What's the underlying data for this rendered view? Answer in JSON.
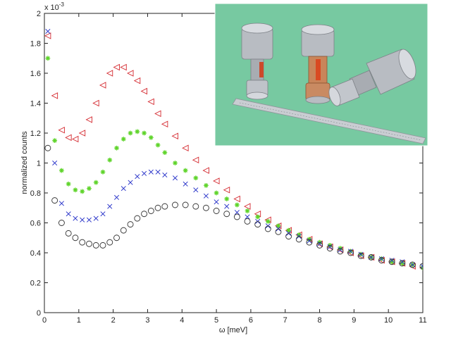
{
  "chart_data": {
    "type": "scatter",
    "title": "",
    "xlabel": "ω [meV]",
    "ylabel": "normalized counts",
    "y_exponent_label": "x 10",
    "y_exponent_power": "-3",
    "xlim": [
      0,
      11
    ],
    "ylim": [
      0,
      2.0
    ],
    "x_ticks": [
      "0",
      "1",
      "2",
      "3",
      "4",
      "5",
      "6",
      "7",
      "8",
      "9",
      "10",
      "11"
    ],
    "y_ticks": [
      "0",
      "0.2",
      "0.4",
      "0.6",
      "0.8",
      "1",
      "1.2",
      "1.4",
      "1.6",
      "1.8",
      "2"
    ],
    "grid": false,
    "series": [
      {
        "marker": "triangle-left",
        "color": "#d4282e",
        "x": [
          0.1,
          0.3,
          0.5,
          0.7,
          0.9,
          1.1,
          1.3,
          1.5,
          1.7,
          1.9,
          2.1,
          2.3,
          2.5,
          2.7,
          2.9,
          3.1,
          3.3,
          3.5,
          3.8,
          4.1,
          4.4,
          4.7,
          5.0,
          5.3,
          5.6,
          5.9,
          6.2,
          6.5,
          6.8,
          7.1,
          7.4,
          7.7,
          8.0,
          8.3,
          8.6,
          8.9,
          9.2,
          9.5,
          9.8,
          10.1,
          10.4,
          10.7,
          11.0
        ],
        "y": [
          1.85,
          1.45,
          1.22,
          1.17,
          1.16,
          1.2,
          1.29,
          1.4,
          1.52,
          1.6,
          1.64,
          1.64,
          1.6,
          1.55,
          1.48,
          1.41,
          1.33,
          1.26,
          1.18,
          1.1,
          1.02,
          0.95,
          0.88,
          0.82,
          0.76,
          0.71,
          0.66,
          0.62,
          0.58,
          0.55,
          0.52,
          0.49,
          0.46,
          0.44,
          0.42,
          0.4,
          0.38,
          0.37,
          0.35,
          0.34,
          0.33,
          0.31,
          0.3
        ]
      },
      {
        "marker": "star",
        "color": "#5fd42b",
        "x": [
          0.1,
          0.3,
          0.5,
          0.7,
          0.9,
          1.1,
          1.3,
          1.5,
          1.7,
          1.9,
          2.1,
          2.3,
          2.5,
          2.7,
          2.9,
          3.1,
          3.3,
          3.5,
          3.8,
          4.1,
          4.4,
          4.7,
          5.0,
          5.3,
          5.6,
          5.9,
          6.2,
          6.5,
          6.8,
          7.1,
          7.4,
          7.7,
          8.0,
          8.3,
          8.6,
          8.9,
          9.2,
          9.5,
          9.8,
          10.1,
          10.4,
          10.7,
          11.0
        ],
        "y": [
          1.7,
          1.15,
          0.95,
          0.86,
          0.82,
          0.81,
          0.83,
          0.87,
          0.94,
          1.02,
          1.1,
          1.16,
          1.2,
          1.21,
          1.2,
          1.17,
          1.12,
          1.07,
          1.0,
          0.95,
          0.9,
          0.85,
          0.8,
          0.76,
          0.72,
          0.68,
          0.64,
          0.61,
          0.58,
          0.55,
          0.52,
          0.49,
          0.47,
          0.45,
          0.43,
          0.41,
          0.39,
          0.37,
          0.36,
          0.34,
          0.33,
          0.32,
          0.3
        ]
      },
      {
        "marker": "x",
        "color": "#2833c9",
        "x": [
          0.1,
          0.3,
          0.5,
          0.7,
          0.9,
          1.1,
          1.3,
          1.5,
          1.7,
          1.9,
          2.1,
          2.3,
          2.5,
          2.7,
          2.9,
          3.1,
          3.3,
          3.5,
          3.8,
          4.1,
          4.4,
          4.7,
          5.0,
          5.3,
          5.6,
          5.9,
          6.2,
          6.5,
          6.8,
          7.1,
          7.4,
          7.7,
          8.0,
          8.3,
          8.6,
          8.9,
          9.2,
          9.5,
          9.8,
          10.1,
          10.4,
          10.7,
          11.0
        ],
        "y": [
          1.88,
          1.0,
          0.73,
          0.66,
          0.63,
          0.62,
          0.62,
          0.63,
          0.66,
          0.71,
          0.77,
          0.83,
          0.87,
          0.91,
          0.93,
          0.94,
          0.94,
          0.92,
          0.9,
          0.86,
          0.82,
          0.78,
          0.74,
          0.71,
          0.67,
          0.64,
          0.61,
          0.58,
          0.56,
          0.53,
          0.51,
          0.48,
          0.46,
          0.44,
          0.42,
          0.41,
          0.39,
          0.37,
          0.36,
          0.35,
          0.34,
          0.32,
          0.31
        ]
      },
      {
        "marker": "circle",
        "color": "#333333",
        "x": [
          0.1,
          0.3,
          0.5,
          0.7,
          0.9,
          1.1,
          1.3,
          1.5,
          1.7,
          1.9,
          2.1,
          2.3,
          2.5,
          2.7,
          2.9,
          3.1,
          3.3,
          3.5,
          3.8,
          4.1,
          4.4,
          4.7,
          5.0,
          5.3,
          5.6,
          5.9,
          6.2,
          6.5,
          6.8,
          7.1,
          7.4,
          7.7,
          8.0,
          8.3,
          8.6,
          8.9,
          9.2,
          9.5,
          9.8,
          10.1,
          10.4,
          10.7,
          11.0
        ],
        "y": [
          1.1,
          0.75,
          0.6,
          0.53,
          0.5,
          0.47,
          0.46,
          0.45,
          0.45,
          0.47,
          0.5,
          0.55,
          0.59,
          0.63,
          0.66,
          0.68,
          0.7,
          0.71,
          0.72,
          0.72,
          0.71,
          0.7,
          0.68,
          0.66,
          0.64,
          0.61,
          0.59,
          0.56,
          0.54,
          0.51,
          0.49,
          0.47,
          0.45,
          0.43,
          0.41,
          0.4,
          0.38,
          0.37,
          0.35,
          0.34,
          0.33,
          0.32,
          0.31
        ]
      }
    ]
  },
  "inset": {
    "description_colors": {
      "background": "#77c9a1",
      "metal": "#b8bcc2",
      "copper": "#c9855a",
      "ruler": "#c9cdd2"
    }
  }
}
